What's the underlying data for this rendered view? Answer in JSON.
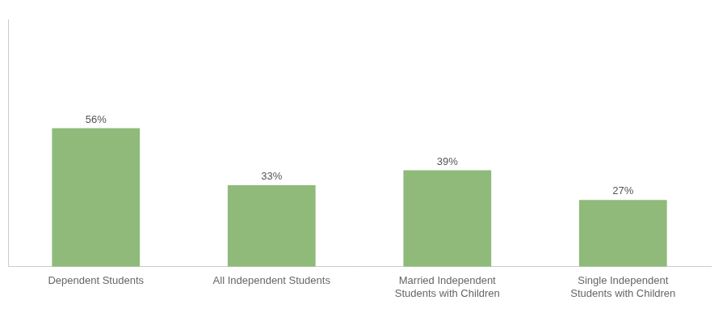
{
  "chart_data": {
    "type": "bar",
    "categories": [
      "Dependent Students",
      "All Independent Students",
      "Married Independent\nStudents with Children",
      "Single Independent\nStudents with Children"
    ],
    "values": [
      56,
      33,
      39,
      27
    ],
    "value_labels": [
      "56%",
      "33%",
      "39%",
      "27%"
    ],
    "data_labels": true,
    "color": "#8fba7a",
    "ylim": [
      0,
      100
    ],
    "grid": false,
    "tick_labels": "x"
  }
}
